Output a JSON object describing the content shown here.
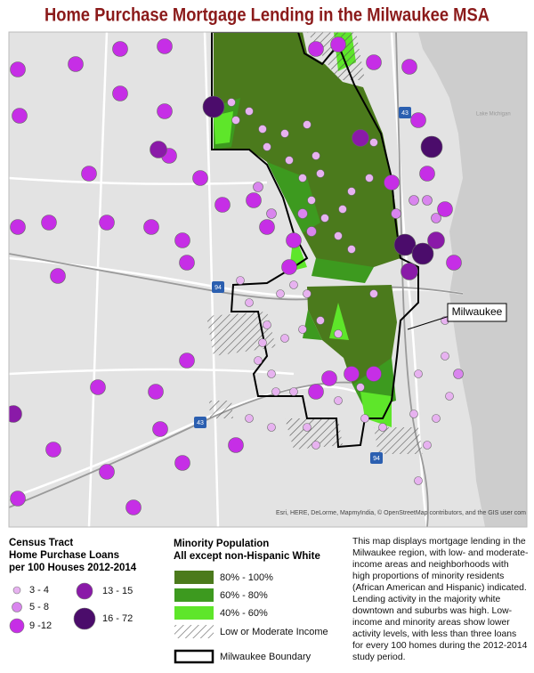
{
  "title": "Home Purchase Mortgage Lending in the Milwaukee MSA",
  "map": {
    "city_label": "Milwaukee",
    "lake_label": "Lake Michigan",
    "highway_labels": [
      "43",
      "94",
      "43",
      "94"
    ],
    "attribution": "Esri, HERE, DeLorme, MapmyIndia, © OpenStreetMap contributors, and the GIS user community"
  },
  "legend_loans": {
    "title_lines": [
      "Census Tract",
      "Home Purchase Loans",
      "per 100 Houses 2012-2014"
    ],
    "items": [
      "3 - 4",
      "5 - 8",
      "9 -12",
      "13 - 15",
      "16 - 72"
    ]
  },
  "legend_minority": {
    "title": "Minority Population",
    "subtitle": "All except non-Hispanic White",
    "items": [
      "80% - 100%",
      "60% - 80%",
      "40% - 60%",
      "Low or Moderate Income"
    ]
  },
  "legend_boundary": "Milwaukee Boundary",
  "description": "This map displays mortgage lending in the Milwaukee region, with low- and moderate-income areas and neighborhoods with high proportions of minority residents (African American and Hispanic) indicated. Lending activity in the majority white downtown and suburbs was high. Low-income and minority areas show lower activity levels, with less than three loans for every 100 homes during the 2012-2014 study period."
}
